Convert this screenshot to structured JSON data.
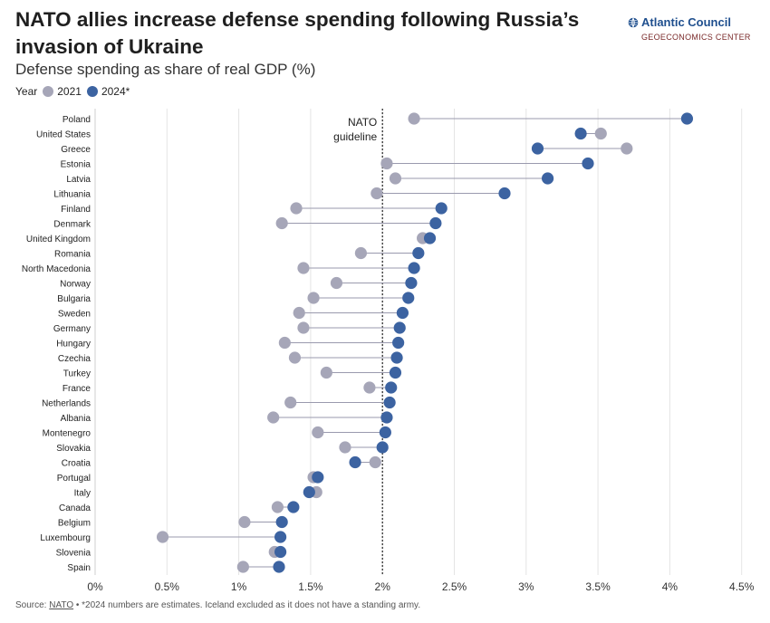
{
  "header": {
    "title": "NATO allies increase defense spending following Russia’s invasion of Ukraine",
    "subtitle": "Defense spending as share of real GDP (%)"
  },
  "logo": {
    "name": "Atlantic Council",
    "sub": "GEOECONOMICS CENTER",
    "icon": "globe-icon"
  },
  "legend": {
    "label": "Year",
    "items": [
      {
        "label": "2021"
      },
      {
        "label": "2024*"
      }
    ]
  },
  "footer": {
    "source_label": "Source:",
    "source_link": "NATO",
    "note": "• *2024 numbers are estimates. Iceland excluded as it does not have a standing army."
  },
  "colors": {
    "y2021": "#a6a6b8",
    "y2024": "#3c63a1",
    "connector": "#9a9aae",
    "grid": "#e4e4e4",
    "guideline": "#222222"
  },
  "chart_data": {
    "type": "dumbbell",
    "xlim": [
      0,
      4.5
    ],
    "xticks": [
      0,
      0.5,
      1,
      1.5,
      2,
      2.5,
      3,
      3.5,
      4,
      4.5
    ],
    "xtick_labels": [
      "0%",
      "0.5%",
      "1%",
      "1.5%",
      "2%",
      "2.5%",
      "3%",
      "3.5%",
      "4%",
      "4.5%"
    ],
    "grid": true,
    "reference_line": {
      "value": 2,
      "label_lines": [
        "NATO",
        "guideline"
      ]
    },
    "series": [
      {
        "name": "2021"
      },
      {
        "name": "2024*"
      }
    ],
    "categories": [
      "Poland",
      "United States",
      "Greece",
      "Estonia",
      "Latvia",
      "Lithuania",
      "Finland",
      "Denmark",
      "United Kingdom",
      "Romania",
      "North Macedonia",
      "Norway",
      "Bulgaria",
      "Sweden",
      "Germany",
      "Hungary",
      "Czechia",
      "Turkey",
      "France",
      "Netherlands",
      "Albania",
      "Montenegro",
      "Slovakia",
      "Croatia",
      "Portugal",
      "Italy",
      "Canada",
      "Belgium",
      "Luxembourg",
      "Slovenia",
      "Spain"
    ],
    "values_2021": [
      2.22,
      3.52,
      3.7,
      2.03,
      2.09,
      1.96,
      1.4,
      1.3,
      2.28,
      1.85,
      1.45,
      1.68,
      1.52,
      1.42,
      1.45,
      1.32,
      1.39,
      1.61,
      1.91,
      1.36,
      1.24,
      1.55,
      1.74,
      1.95,
      1.52,
      1.54,
      1.27,
      1.04,
      0.47,
      1.25,
      1.03
    ],
    "values_2024": [
      4.12,
      3.38,
      3.08,
      3.43,
      3.15,
      2.85,
      2.41,
      2.37,
      2.33,
      2.25,
      2.22,
      2.2,
      2.18,
      2.14,
      2.12,
      2.11,
      2.1,
      2.09,
      2.06,
      2.05,
      2.03,
      2.02,
      2.0,
      1.81,
      1.55,
      1.49,
      1.38,
      1.3,
      1.29,
      1.29,
      1.28
    ]
  }
}
